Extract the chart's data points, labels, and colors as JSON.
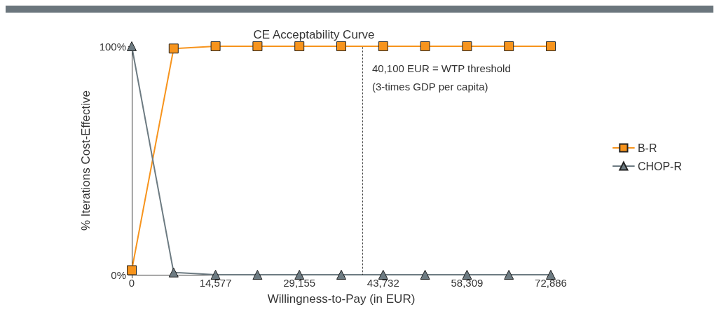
{
  "chart_data": {
    "type": "line",
    "title": "CE Acceptability Curve",
    "xlabel": "Willingness-to-Pay (in EUR)",
    "ylabel": "% Iterations Cost-Effective",
    "x": [
      0,
      7288.6,
      14577,
      21866,
      29155,
      36443,
      43732,
      51020,
      58309,
      65597,
      72886
    ],
    "series": [
      {
        "name": "B-R",
        "color": "#f7941d",
        "marker": "square",
        "values": [
          2,
          99,
          100,
          100,
          100,
          100,
          100,
          100,
          100,
          100,
          100
        ]
      },
      {
        "name": "CHOP-R",
        "color": "#6d7b82",
        "marker": "triangle",
        "values": [
          100,
          1,
          0,
          0,
          0,
          0,
          0,
          0,
          0,
          0,
          0
        ]
      }
    ],
    "xlim": [
      0,
      72886
    ],
    "xticks": [
      0,
      {
        "value": 14577,
        "label": "14,577"
      },
      {
        "value": 29155,
        "label": "29,155"
      },
      {
        "value": 43732,
        "label": "43,732"
      },
      {
        "value": 58309,
        "label": "58,309"
      },
      {
        "value": 72886,
        "label": "72,886"
      }
    ],
    "ylim": [
      0,
      100
    ],
    "yticks": [
      {
        "value": 0,
        "label": "0%"
      },
      {
        "value": 100,
        "label": "100%"
      }
    ],
    "ref_lines": [
      {
        "axis": "x",
        "value": 40100,
        "label": "40,100 EUR = WTP threshold\n(3-times GDP per capita)",
        "line_style": "dotted",
        "color": "#333333"
      }
    ],
    "legend": "right",
    "grid": false,
    "line_style": "solid"
  }
}
